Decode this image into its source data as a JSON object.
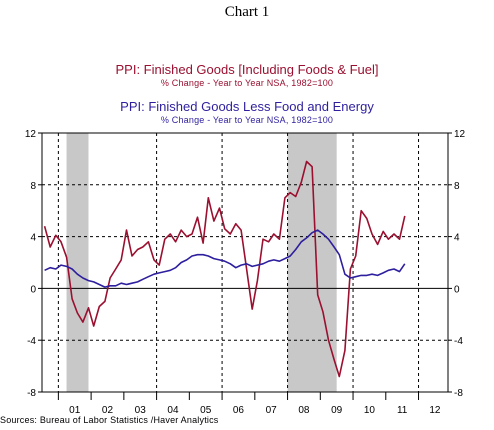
{
  "page_title": "Chart 1",
  "source_text": "Sources:  Bureau of Labor Statistics /Haver Analytics",
  "colors": {
    "series1": "#9b1030",
    "series2": "#2d1f9e",
    "recession": "#c8c8c8"
  },
  "chart_data": {
    "type": "line",
    "title": "PPI: Finished Goods [Including Foods & Fuel]",
    "subtitle": "% Change - Year to Year     NSA, 1982=100",
    "second_title": "PPI: Finished Goods Less Food and Energy",
    "second_subtitle": "% Change - Year to Year     NSA, 1982=100",
    "xlabel": "",
    "ylabel": "",
    "xlim": [
      2000.5,
      2012.9
    ],
    "ylim": [
      -8,
      12
    ],
    "y_ticks": [
      -8,
      -4,
      0,
      4,
      8,
      12
    ],
    "y_tick_labels": [
      "-8",
      "-4",
      "0",
      "4",
      "8",
      "12"
    ],
    "x_tick_labels": [
      {
        "label": "01",
        "x": 2001.5
      },
      {
        "label": "02",
        "x": 2002.5
      },
      {
        "label": "03",
        "x": 2003.5
      },
      {
        "label": "04",
        "x": 2004.5
      },
      {
        "label": "05",
        "x": 2005.5
      },
      {
        "label": "06",
        "x": 2006.5
      },
      {
        "label": "07",
        "x": 2007.5
      },
      {
        "label": "08",
        "x": 2008.5
      },
      {
        "label": "09",
        "x": 2009.5
      },
      {
        "label": "10",
        "x": 2010.5
      },
      {
        "label": "11",
        "x": 2011.5
      },
      {
        "label": "12",
        "x": 2012.5
      }
    ],
    "vertical_gridlines": [
      2001.0,
      2004.0,
      2006.0,
      2008.0,
      2010.0,
      2012.0
    ],
    "horizontal_gridlines": [
      -8,
      -4,
      4,
      8
    ],
    "zero_line": 0,
    "grid": true,
    "recessions": [
      [
        2001.25,
        2001.92
      ],
      [
        2008.0,
        2009.5
      ]
    ],
    "series": [
      {
        "name": "PPI: Finished Goods [Including Foods & Fuel]",
        "color": "#9b1030",
        "x": [
          2000.58,
          2000.75,
          2000.92,
          2001.08,
          2001.25,
          2001.42,
          2001.58,
          2001.75,
          2001.92,
          2002.08,
          2002.25,
          2002.42,
          2002.58,
          2002.75,
          2002.92,
          2003.08,
          2003.25,
          2003.42,
          2003.58,
          2003.75,
          2003.92,
          2004.08,
          2004.25,
          2004.42,
          2004.58,
          2004.75,
          2004.92,
          2005.08,
          2005.25,
          2005.42,
          2005.58,
          2005.75,
          2005.92,
          2006.08,
          2006.25,
          2006.42,
          2006.58,
          2006.75,
          2006.92,
          2007.08,
          2007.25,
          2007.42,
          2007.58,
          2007.75,
          2007.92,
          2008.08,
          2008.25,
          2008.42,
          2008.58,
          2008.75,
          2008.92,
          2009.08,
          2009.25,
          2009.42,
          2009.58,
          2009.75,
          2009.92,
          2010.08,
          2010.25,
          2010.42,
          2010.58,
          2010.75,
          2010.92,
          2011.08,
          2011.25,
          2011.42,
          2011.58
        ],
        "y": [
          4.8,
          3.2,
          4.1,
          3.6,
          2.4,
          -0.8,
          -1.9,
          -2.6,
          -1.5,
          -2.9,
          -1.4,
          -1.0,
          0.8,
          1.5,
          2.2,
          4.5,
          2.5,
          3.0,
          3.2,
          3.6,
          2.2,
          1.8,
          3.8,
          4.2,
          3.6,
          4.5,
          4.0,
          4.2,
          5.5,
          3.5,
          7.0,
          5.2,
          6.2,
          4.6,
          4.2,
          5.0,
          4.5,
          1.5,
          -1.6,
          0.6,
          3.8,
          3.6,
          4.2,
          3.8,
          7.0,
          7.4,
          7.1,
          8.2,
          9.8,
          9.4,
          -0.5,
          -1.8,
          -4.0,
          -5.5,
          -6.8,
          -4.8,
          1.5,
          2.5,
          6.0,
          5.4,
          4.2,
          3.4,
          4.4,
          3.8,
          4.2,
          3.8,
          5.6
        ]
      },
      {
        "name": "PPI: Finished Goods Less Food and Energy",
        "color": "#2d1f9e",
        "x": [
          2000.58,
          2000.75,
          2000.92,
          2001.08,
          2001.25,
          2001.42,
          2001.58,
          2001.75,
          2001.92,
          2002.08,
          2002.25,
          2002.42,
          2002.58,
          2002.75,
          2002.92,
          2003.08,
          2003.25,
          2003.42,
          2003.58,
          2003.75,
          2003.92,
          2004.08,
          2004.25,
          2004.42,
          2004.58,
          2004.75,
          2004.92,
          2005.08,
          2005.25,
          2005.42,
          2005.58,
          2005.75,
          2005.92,
          2006.08,
          2006.25,
          2006.42,
          2006.58,
          2006.75,
          2006.92,
          2007.08,
          2007.25,
          2007.42,
          2007.58,
          2007.75,
          2007.92,
          2008.08,
          2008.25,
          2008.42,
          2008.58,
          2008.75,
          2008.92,
          2009.08,
          2009.25,
          2009.42,
          2009.58,
          2009.75,
          2009.92,
          2010.08,
          2010.25,
          2010.42,
          2010.58,
          2010.75,
          2010.92,
          2011.08,
          2011.25,
          2011.42,
          2011.58
        ],
        "y": [
          1.4,
          1.6,
          1.5,
          1.8,
          1.7,
          1.5,
          1.1,
          0.8,
          0.6,
          0.5,
          0.3,
          0.1,
          0.2,
          0.2,
          0.4,
          0.3,
          0.4,
          0.5,
          0.7,
          0.9,
          1.1,
          1.2,
          1.3,
          1.4,
          1.6,
          2.0,
          2.2,
          2.5,
          2.6,
          2.6,
          2.5,
          2.3,
          2.2,
          2.1,
          1.9,
          1.6,
          1.8,
          1.9,
          1.7,
          1.8,
          1.9,
          2.1,
          2.2,
          2.1,
          2.3,
          2.5,
          3.0,
          3.6,
          3.9,
          4.3,
          4.5,
          4.2,
          3.8,
          3.2,
          2.6,
          1.1,
          0.8,
          0.9,
          1.0,
          1.0,
          1.1,
          1.0,
          1.2,
          1.4,
          1.5,
          1.3,
          1.9
        ]
      }
    ]
  }
}
